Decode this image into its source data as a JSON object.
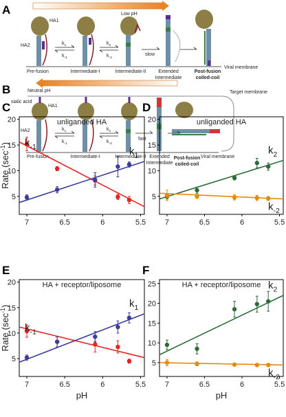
{
  "diagram_a": {
    "letter": "A",
    "ph_label": "Low pH",
    "ha1": "HA1",
    "ha2": "HA2",
    "rates": [
      "k1",
      "k-1",
      "k2",
      "k-2"
    ],
    "step": "slow",
    "states": [
      "Pre-fusion",
      "Intermediate-I",
      "Intermediate-II",
      "Extended Intermediate",
      "Post-fusion coiled-coil"
    ],
    "membrane": "Viral membrane"
  },
  "diagram_b": {
    "letter": "B",
    "ph_label": "Neutral pH",
    "receptor": "sialic acid",
    "ha1": "HA1",
    "ha2": "HA2",
    "rates": [
      "k1",
      "k-1",
      "k2",
      "k-2"
    ],
    "step": "fast",
    "target": "Target membrane",
    "states": [
      "Pre-fusion",
      "Intermediate-I",
      "Intermediate-II",
      "Extended Intermediate",
      "Post-fusion coiled-coil"
    ],
    "membrane": "Viral membrane"
  },
  "chart_data": [
    {
      "type": "scatter",
      "letter": "C",
      "title": "unliganded HA",
      "ylabel": "Rate (sec-1)",
      "xlim": [
        7.1,
        5.45
      ],
      "xticks": [
        7,
        6.5,
        6,
        5.5
      ],
      "ylim": [
        1.5,
        20.5
      ],
      "yticks": [
        5,
        10,
        15,
        20
      ],
      "series": [
        {
          "name": "k-1",
          "color": "#e8231f",
          "x": [
            7.0,
            6.6,
            6.1,
            5.8,
            5.65
          ],
          "values": [
            15.2,
            10.4,
            8.1,
            4.9,
            4.3
          ],
          "errors": [
            1.3,
            0.4,
            0.9,
            0.5,
            0.7
          ],
          "fit": [
            15.6,
            3.0
          ]
        },
        {
          "name": "k1",
          "color": "#3b3c9c",
          "x": [
            7.0,
            6.6,
            6.1,
            5.8,
            5.65
          ],
          "values": [
            4.8,
            6.3,
            8.2,
            10.8,
            11.2
          ],
          "errors": [
            0.5,
            0.6,
            1.4,
            2.0,
            0.5
          ],
          "fit": [
            3.8,
            11.8
          ]
        }
      ]
    },
    {
      "type": "scatter",
      "letter": "D",
      "title": "unliganded HA",
      "xlim": [
        7.1,
        5.45
      ],
      "xticks": [
        7,
        6.5,
        6,
        5.5
      ],
      "ylim": [
        1.5,
        20.5
      ],
      "yticks": [
        5,
        10,
        15,
        20
      ],
      "series": [
        {
          "name": "k2",
          "color": "#2e6b3a",
          "x": [
            7.0,
            6.6,
            6.1,
            5.8,
            5.65
          ],
          "values": [
            5.0,
            6.2,
            8.6,
            11.5,
            10.8
          ],
          "errors": [
            0.5,
            0.6,
            0.4,
            0.9,
            0.7
          ],
          "fit": [
            4.5,
            12.0
          ]
        },
        {
          "name": "k-2",
          "color": "#e38a12",
          "x": [
            7.0,
            6.6,
            6.1,
            5.8,
            5.65
          ],
          "values": [
            5.2,
            5.0,
            4.8,
            4.7,
            4.6
          ],
          "errors": [
            1.0,
            0.4,
            0.5,
            0.5,
            0.4
          ],
          "fit": [
            5.6,
            4.5
          ]
        }
      ]
    },
    {
      "type": "scatter",
      "letter": "E",
      "title": "HA + receptor/liposome",
      "ylabel": "Rate (sec-1)",
      "xlabel": "pH",
      "xlim": [
        7.1,
        5.45
      ],
      "xticks": [
        7,
        6.5,
        6,
        5.5
      ],
      "ylim": [
        1.5,
        20.5
      ],
      "yticks": [
        5,
        10,
        15,
        20
      ],
      "series": [
        {
          "name": "k-1",
          "color": "#e8231f",
          "x": [
            7.0,
            6.6,
            6.1,
            5.8,
            5.65
          ],
          "values": [
            10.4,
            8.3,
            7.8,
            7.3,
            4.5
          ],
          "errors": [
            1.2,
            1.0,
            1.5,
            1.2,
            0.4
          ],
          "fit": [
            11.2,
            5.2
          ]
        },
        {
          "name": "k1",
          "color": "#3b3c9c",
          "x": [
            7.0,
            6.6,
            6.1,
            5.8,
            5.65
          ],
          "values": [
            5.2,
            8.3,
            9.3,
            11.2,
            13.0
          ],
          "errors": [
            0.5,
            1.0,
            1.0,
            1.2,
            1.0
          ],
          "fit": [
            4.3,
            13.8
          ]
        }
      ]
    },
    {
      "type": "scatter",
      "letter": "F",
      "title": "HA + receptor/liposome",
      "xlabel": "pH",
      "xlim": [
        7.1,
        5.45
      ],
      "xticks": [
        7,
        6.5,
        6,
        5.5
      ],
      "ylim": [
        1.5,
        26
      ],
      "yticks": [
        5,
        10,
        15,
        20,
        25
      ],
      "series": [
        {
          "name": "k2",
          "color": "#2e6b3a",
          "x": [
            7.0,
            6.6,
            6.1,
            5.8,
            5.65
          ],
          "values": [
            9.5,
            8.5,
            18.5,
            19.8,
            20.5
          ],
          "errors": [
            1.2,
            1.3,
            2.0,
            2.0,
            2.5
          ],
          "fit": [
            7.0,
            22.0
          ]
        },
        {
          "name": "k-2",
          "color": "#e38a12",
          "x": [
            7.0,
            6.6,
            6.1,
            5.8,
            5.65
          ],
          "values": [
            5.0,
            4.7,
            4.5,
            4.4,
            4.4
          ],
          "errors": [
            0.8,
            0.5,
            0.4,
            0.4,
            0.4
          ],
          "fit": [
            5.0,
            4.4
          ]
        }
      ]
    }
  ]
}
